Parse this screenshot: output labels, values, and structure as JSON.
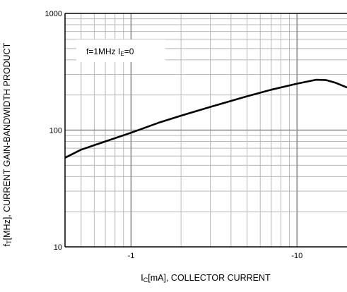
{
  "chart_data": {
    "type": "line",
    "title": "",
    "xlabel": {
      "main": "I",
      "sub": "C",
      "rest": "[mA], COLLECTOR CURRENT"
    },
    "ylabel": {
      "main": "f",
      "sub": "T",
      "rest": "[MHz], CURRENT GAIN-BANDWIDTH PRODUCT"
    },
    "xscale": "log",
    "yscale": "log",
    "x_direction": "increasing magnitude to the right (negative current)",
    "xlim": [
      0.4,
      20
    ],
    "ylim": [
      10,
      1000
    ],
    "x_ticks": [
      {
        "value": 1,
        "label": "-1"
      },
      {
        "value": 10,
        "label": "-10"
      }
    ],
    "y_ticks": [
      {
        "value": 10,
        "label": "10"
      },
      {
        "value": 100,
        "label": "100"
      },
      {
        "value": 1000,
        "label": "1000"
      }
    ],
    "grid": true,
    "annotation": {
      "text_a": "f=1MHz  I",
      "sub": "E",
      "text_b": "=0"
    },
    "series": [
      {
        "x": [
          0.4,
          0.5,
          0.7,
          1.0,
          1.5,
          2,
          3,
          5,
          7,
          10,
          13,
          15,
          17,
          20
        ],
        "y": [
          58,
          68,
          80,
          95,
          117,
          133,
          158,
          195,
          222,
          250,
          270,
          268,
          255,
          232
        ],
        "color": "#000000"
      }
    ]
  }
}
